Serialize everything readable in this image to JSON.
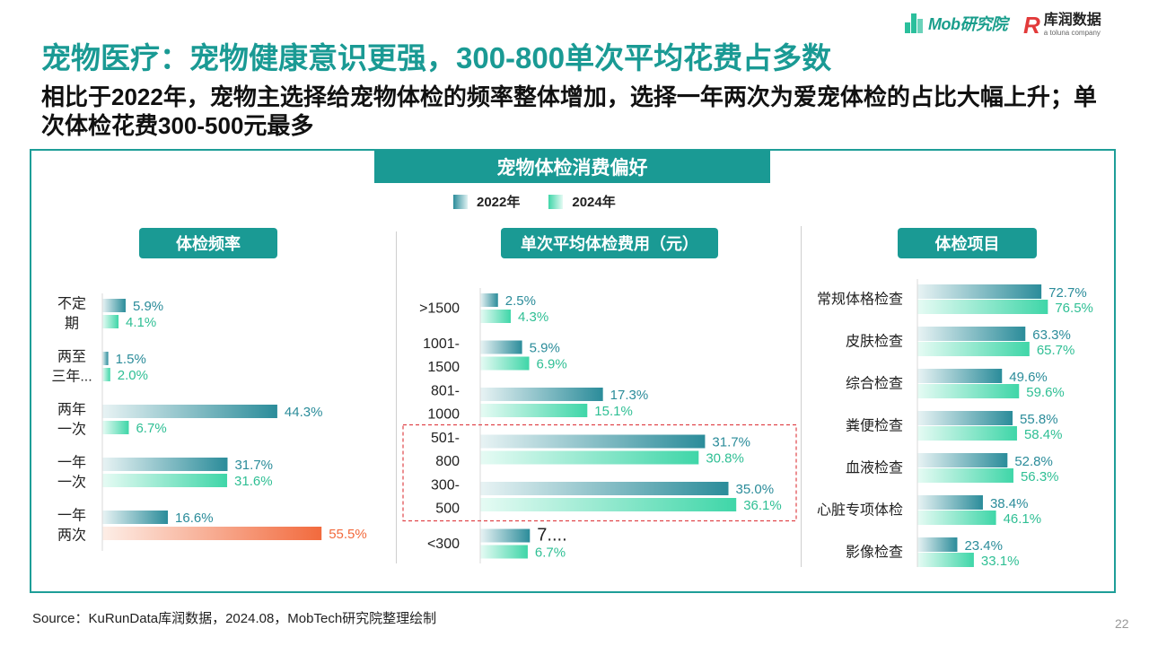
{
  "logos": {
    "mob": "Mob研究院",
    "kr_name": "库润数据",
    "kr_sub": "a toluna company"
  },
  "title": "宠物医疗：宠物健康意识更强，300-800单次平均花费占多数",
  "subtitle": "相比于2022年，宠物主选择给宠物体检的频率整体增加，选择一年两次为爱宠体检的占比大幅上升；单次体检花费300-500元最多",
  "banner": "宠物体检消费偏好",
  "legend": [
    {
      "label": "2022年",
      "color": "#2b8c9a"
    },
    {
      "label": "2024年",
      "color": "#3fd6a8"
    }
  ],
  "colors": {
    "accent": "#1a9a94",
    "series2022": "#2b8c9a",
    "series2024": "#3fd6a8",
    "highlight": "#f26a3d",
    "dash_box": "#e0454a"
  },
  "source": "Source：KuRunData库润数据，2024.08，MobTech研究院整理绘制",
  "page_number": "22",
  "chart_data": [
    {
      "type": "bar",
      "orientation": "horizontal",
      "title": "体检频率",
      "categories": [
        [
          "不定",
          "期"
        ],
        [
          "两至",
          "三年..."
        ],
        [
          "两年",
          "一次"
        ],
        [
          "一年",
          "一次"
        ],
        [
          "一年",
          "两次"
        ]
      ],
      "series": [
        {
          "name": "2022年",
          "values": [
            5.9,
            1.5,
            44.3,
            31.7,
            16.6
          ],
          "labels": [
            "5.9%",
            "1.5%",
            "44.3%",
            "31.7%",
            "16.6%"
          ]
        },
        {
          "name": "2024年",
          "values": [
            4.1,
            2.0,
            6.7,
            31.6,
            55.5
          ],
          "labels": [
            "4.1%",
            "2.0%",
            "6.7%",
            "31.6%",
            "55.5%"
          ]
        }
      ],
      "highlight": {
        "series": 1,
        "index": 4
      }
    },
    {
      "type": "bar",
      "orientation": "horizontal",
      "title": "单次平均体检费用（元）",
      "categories": [
        [
          ">1500"
        ],
        [
          "1001-",
          "1500"
        ],
        [
          "801-",
          "1000"
        ],
        [
          "501-",
          "800"
        ],
        [
          "300-",
          "500"
        ],
        [
          "<300"
        ]
      ],
      "series": [
        {
          "name": "2022年",
          "values": [
            2.5,
            5.9,
            17.3,
            31.7,
            35.0,
            7.0
          ],
          "labels": [
            "2.5%",
            "5.9%",
            "17.3%",
            "31.7%",
            "35.0%",
            "7...."
          ]
        },
        {
          "name": "2024年",
          "values": [
            4.3,
            6.9,
            15.1,
            30.8,
            36.1,
            6.7
          ],
          "labels": [
            "4.3%",
            "6.9%",
            "15.1%",
            "30.8%",
            "36.1%",
            "6.7%"
          ]
        }
      ],
      "highlight_box": [
        3,
        4
      ]
    },
    {
      "type": "bar",
      "orientation": "horizontal",
      "title": "体检项目",
      "categories": [
        [
          "常规体格检查"
        ],
        [
          "皮肤检查"
        ],
        [
          "综合检查"
        ],
        [
          "粪便检查"
        ],
        [
          "血液检查"
        ],
        [
          "心脏专项体检"
        ],
        [
          "影像检查"
        ]
      ],
      "series": [
        {
          "name": "2022年",
          "values": [
            72.7,
            63.3,
            49.6,
            55.8,
            52.8,
            38.4,
            23.4
          ],
          "labels": [
            "72.7%",
            "63.3%",
            "49.6%",
            "55.8%",
            "52.8%",
            "38.4%",
            "23.4%"
          ]
        },
        {
          "name": "2024年",
          "values": [
            76.5,
            65.7,
            59.6,
            58.4,
            56.3,
            46.1,
            33.1
          ],
          "labels": [
            "76.5%",
            "65.7%",
            "59.6%",
            "58.4%",
            "56.3%",
            "46.1%",
            "33.1%"
          ]
        }
      ]
    }
  ]
}
